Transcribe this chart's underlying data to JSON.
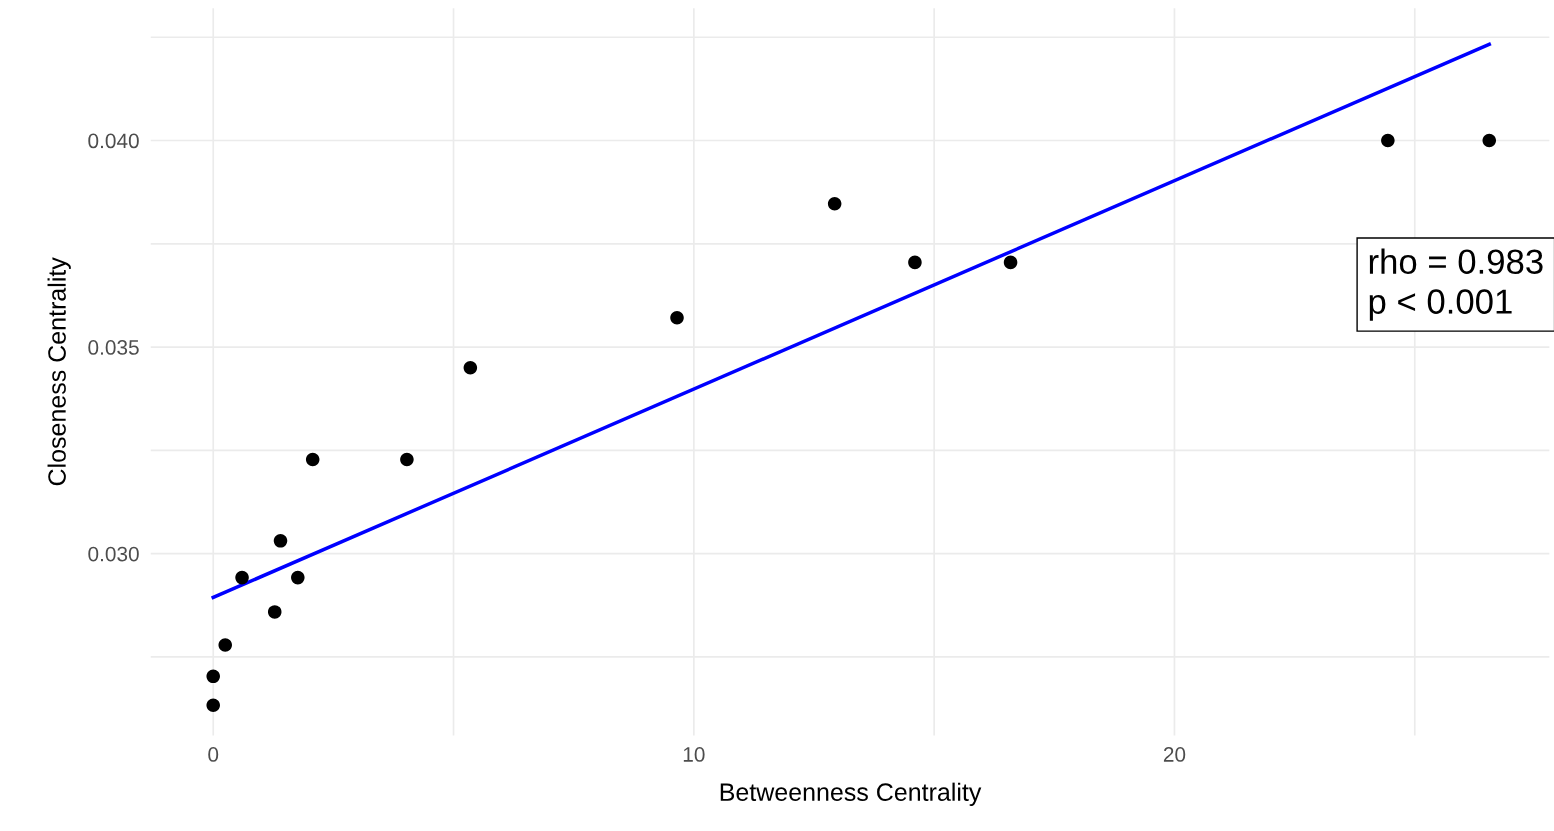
{
  "chart_data": {
    "type": "scatter",
    "xlabel": "Betweenness Centrality",
    "ylabel": "Closeness Centrality",
    "xlim": [
      -1.3,
      27.8
    ],
    "ylim": [
      0.0256,
      0.0432
    ],
    "xticks": [
      0,
      {
        "value": 5,
        "label": null
      },
      10,
      {
        "value": 15,
        "label": null
      },
      20,
      {
        "value": 25,
        "label": null
      }
    ],
    "yticks": [
      {
        "value": 0.0275,
        "label": null
      },
      {
        "value": 0.03,
        "label": "0.030"
      },
      {
        "value": 0.0325,
        "label": null
      },
      {
        "value": 0.035,
        "label": "0.035"
      },
      {
        "value": 0.0375,
        "label": null
      },
      {
        "value": 0.04,
        "label": "0.040"
      },
      {
        "value": 0.0425,
        "label": null
      }
    ],
    "grid": true,
    "series": [
      {
        "marker": "circle",
        "color": "#000000",
        "x": [
          0,
          0,
          0.25,
          0.6,
          1.28,
          1.4,
          1.76,
          2.07,
          4.03,
          5.35,
          9.65,
          12.93,
          14.6,
          16.59,
          24.44,
          26.55
        ],
        "values": [
          0.02633,
          0.02703,
          0.02779,
          0.02942,
          0.02859,
          0.03031,
          0.02942,
          0.03228,
          0.03228,
          0.0345,
          0.03571,
          0.03847,
          0.03705,
          0.03705,
          0.04,
          0.04
        ]
      },
      {
        "type": "line",
        "color": "#0000ff",
        "x": [
          0,
          26.55
        ],
        "values": [
          0.02894,
          0.04233
        ]
      }
    ],
    "annotations": [
      "rho = 0.983\np < 0.001"
    ]
  }
}
